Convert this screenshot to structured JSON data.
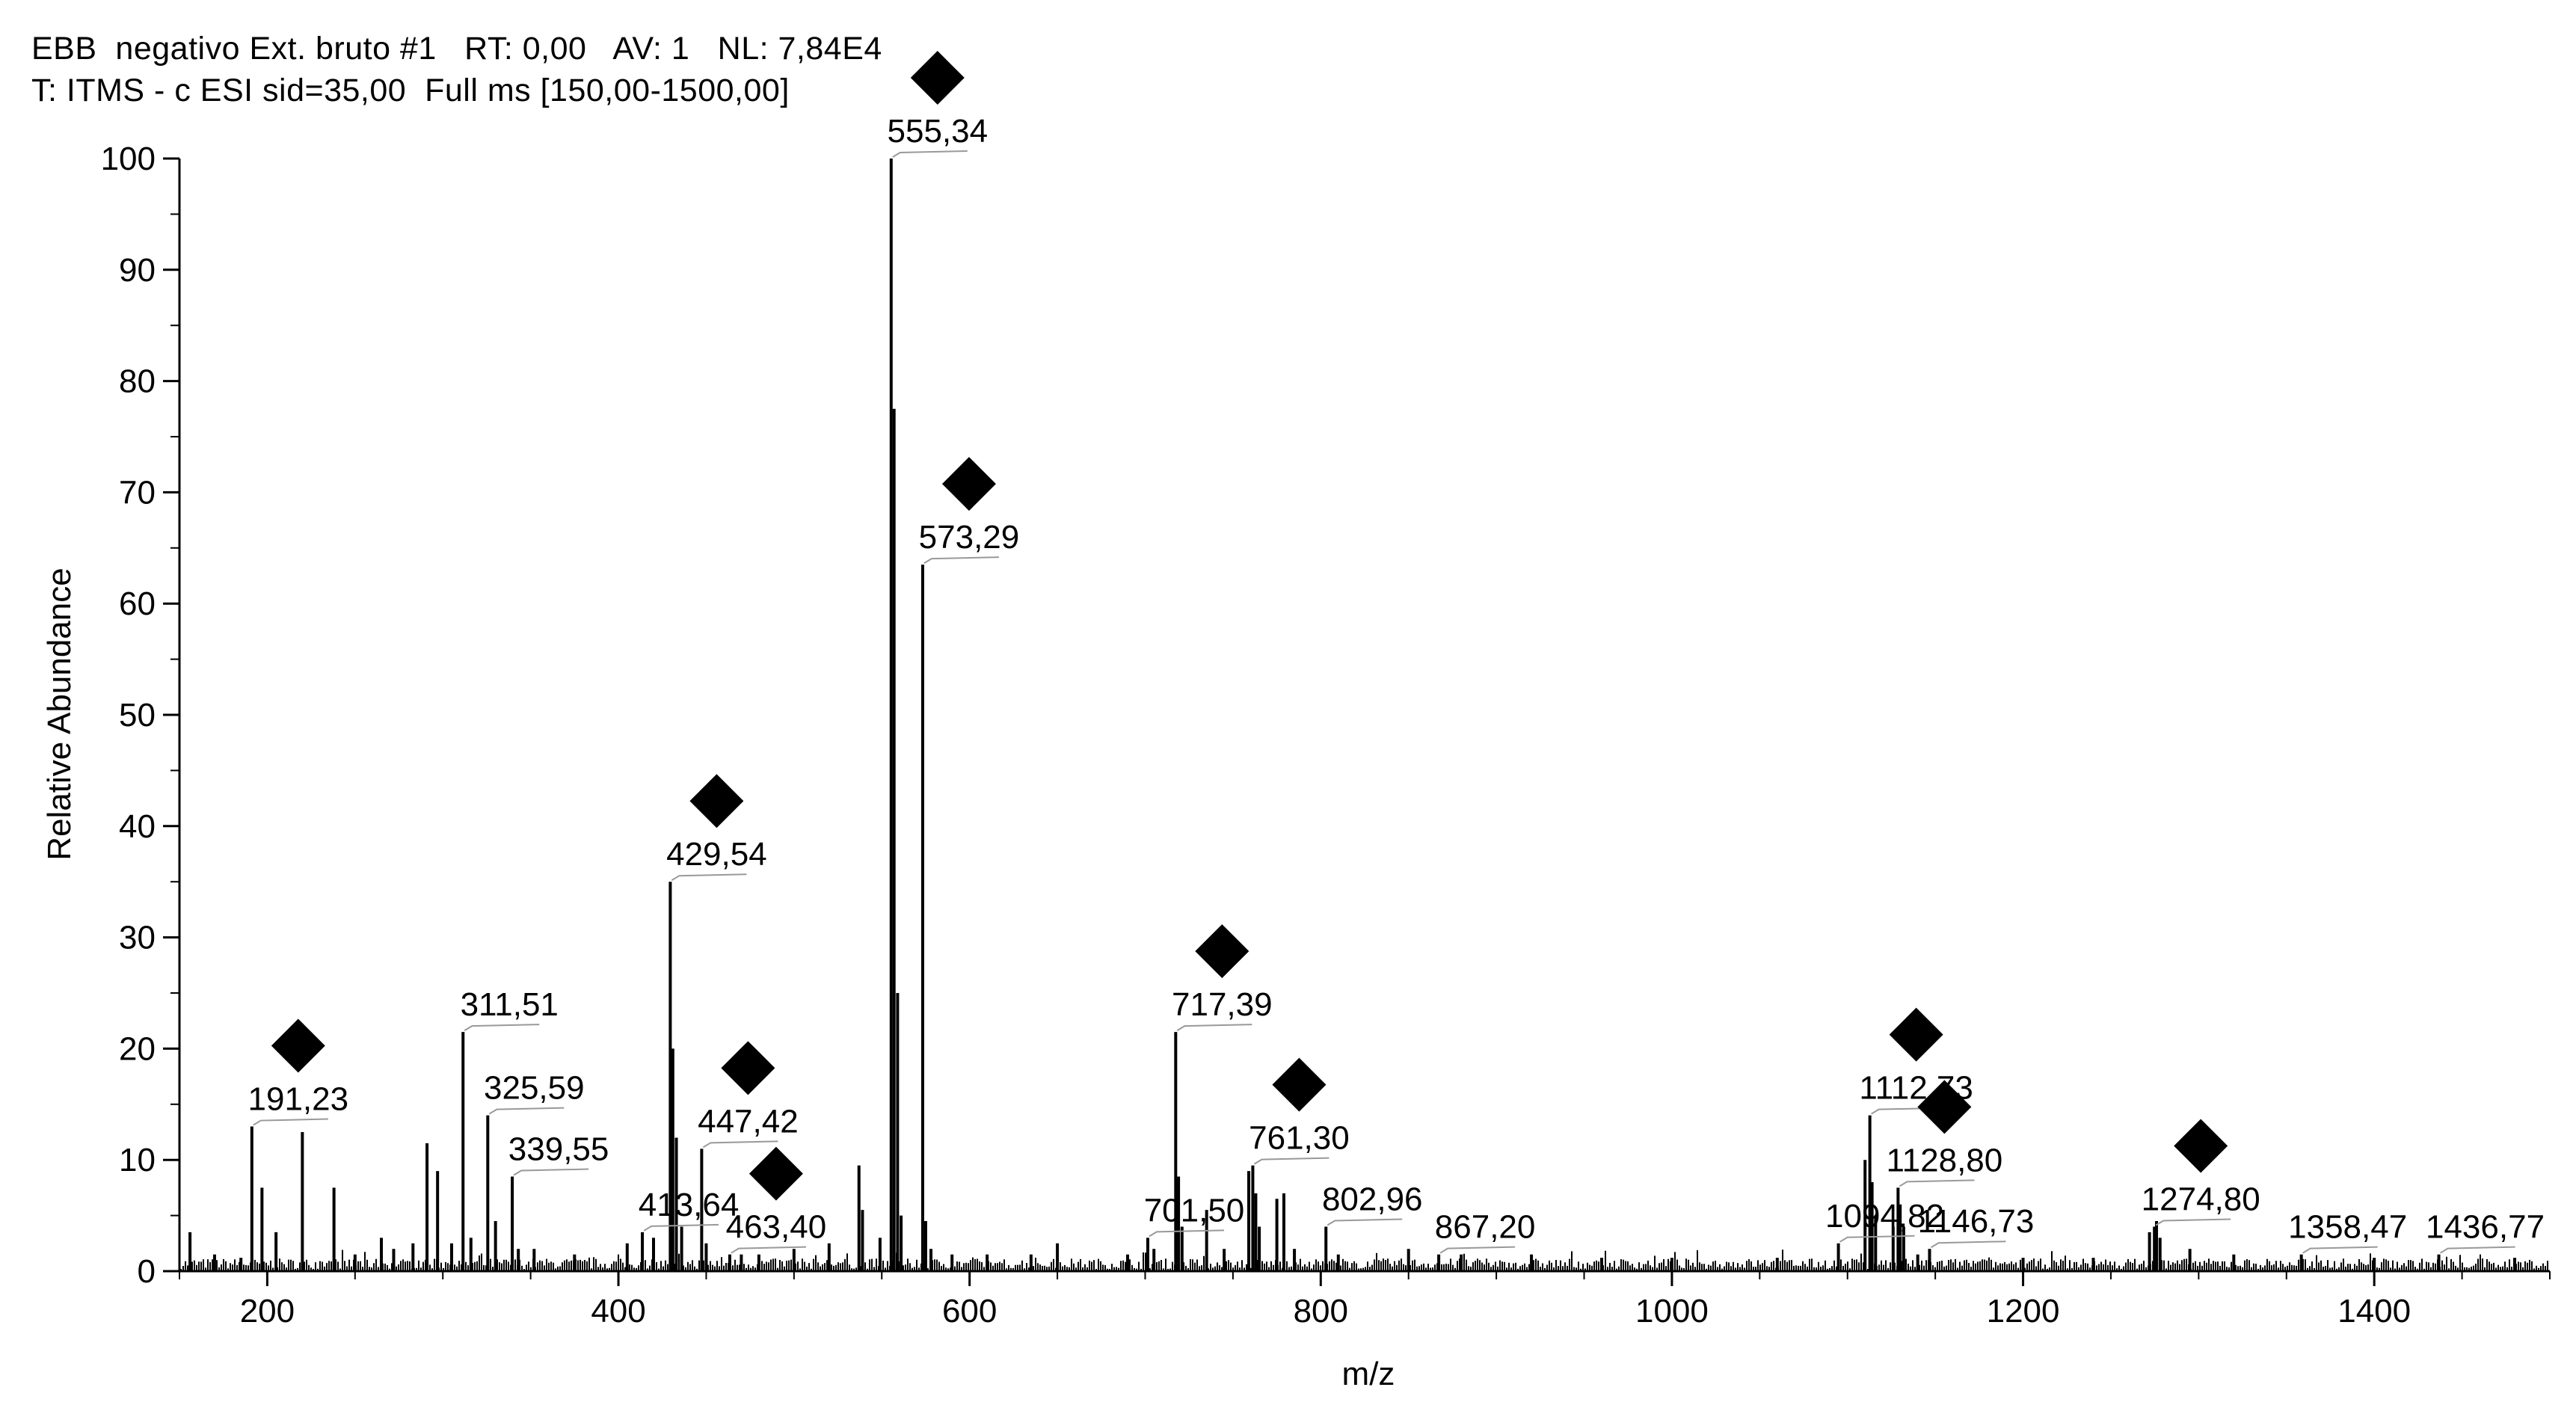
{
  "header": {
    "line1": "EBB  negativo Ext. bruto #1   RT: 0,00   AV: 1   NL: 7,84E4",
    "line2": "T: ITMS - c ESI sid=35,00  Full ms [150,00-1500,00]"
  },
  "chart_data": {
    "type": "bar",
    "xlabel": "m/z",
    "ylabel": "Relative Abundance",
    "xlim": [
      150,
      1500
    ],
    "ylim": [
      0,
      100
    ],
    "xticks": [
      200,
      400,
      600,
      800,
      1000,
      1200,
      1400
    ],
    "yticks": [
      0,
      10,
      20,
      30,
      40,
      50,
      60,
      70,
      80,
      90,
      100
    ],
    "grid": false,
    "peaks": [
      {
        "x": 191.23,
        "y": 13.0,
        "label": "191,23",
        "marker": true
      },
      {
        "x": 311.51,
        "y": 21.5,
        "label": "311,51",
        "marker": false
      },
      {
        "x": 325.59,
        "y": 14.0,
        "label": "325,59",
        "marker": false
      },
      {
        "x": 339.55,
        "y": 8.5,
        "label": "339,55",
        "marker": false
      },
      {
        "x": 413.64,
        "y": 3.5,
        "label": "413,64",
        "marker": false
      },
      {
        "x": 429.54,
        "y": 35.0,
        "label": "429,54",
        "marker": true
      },
      {
        "x": 447.42,
        "y": 11.0,
        "label": "447,42",
        "marker": true
      },
      {
        "x": 463.4,
        "y": 1.5,
        "label": "463,40",
        "marker": true
      },
      {
        "x": 555.34,
        "y": 100.0,
        "label": "555,34",
        "marker": true
      },
      {
        "x": 573.29,
        "y": 63.5,
        "label": "573,29",
        "marker": true
      },
      {
        "x": 701.5,
        "y": 3.0,
        "label": "701,50",
        "marker": false
      },
      {
        "x": 717.39,
        "y": 21.5,
        "label": "717,39",
        "marker": true
      },
      {
        "x": 761.3,
        "y": 9.5,
        "label": "761,30",
        "marker": true
      },
      {
        "x": 802.96,
        "y": 4.0,
        "label": "802,96",
        "marker": false
      },
      {
        "x": 867.2,
        "y": 1.5,
        "label": "867,20",
        "marker": false
      },
      {
        "x": 1094.82,
        "y": 2.5,
        "label": "1094,82",
        "marker": false
      },
      {
        "x": 1112.73,
        "y": 14.0,
        "label": "1112,73",
        "marker": true
      },
      {
        "x": 1128.8,
        "y": 7.5,
        "label": "1128,80",
        "marker": true
      },
      {
        "x": 1146.73,
        "y": 2.0,
        "label": "1146,73",
        "marker": false
      },
      {
        "x": 1274.8,
        "y": 4.0,
        "label": "1274,80",
        "marker": true
      },
      {
        "x": 1358.47,
        "y": 1.5,
        "label": "1358,47",
        "marker": false
      },
      {
        "x": 1436.77,
        "y": 1.5,
        "label": "1436,77",
        "marker": false
      }
    ],
    "minor_peaks": [
      [
        156,
        3.5
      ],
      [
        170,
        1.5
      ],
      [
        185,
        1.2
      ],
      [
        197,
        7.5
      ],
      [
        205,
        3.5
      ],
      [
        220,
        12.5
      ],
      [
        238,
        7.5
      ],
      [
        250,
        1.5
      ],
      [
        265,
        3
      ],
      [
        272,
        2
      ],
      [
        283,
        2.5
      ],
      [
        291,
        11.5
      ],
      [
        297,
        9
      ],
      [
        305,
        2.5
      ],
      [
        316,
        3
      ],
      [
        330,
        4.5
      ],
      [
        343,
        2
      ],
      [
        352,
        2
      ],
      [
        375,
        1.5
      ],
      [
        405,
        2.5
      ],
      [
        420,
        3
      ],
      [
        431,
        20
      ],
      [
        433,
        12
      ],
      [
        436,
        4
      ],
      [
        450,
        2.5
      ],
      [
        470,
        1.5
      ],
      [
        480,
        1.5
      ],
      [
        500,
        2
      ],
      [
        520,
        2.5
      ],
      [
        537,
        9.5
      ],
      [
        539,
        5.5
      ],
      [
        549,
        3
      ],
      [
        557,
        77.5
      ],
      [
        559,
        25
      ],
      [
        561,
        5
      ],
      [
        575,
        4.5
      ],
      [
        578,
        2
      ],
      [
        590,
        1.5
      ],
      [
        610,
        1.5
      ],
      [
        635,
        1.5
      ],
      [
        650,
        2.5
      ],
      [
        690,
        1.5
      ],
      [
        705,
        2
      ],
      [
        719,
        8.5
      ],
      [
        721,
        4
      ],
      [
        735,
        5.5
      ],
      [
        745,
        2
      ],
      [
        759,
        9
      ],
      [
        763,
        7
      ],
      [
        765,
        4
      ],
      [
        775,
        6.5
      ],
      [
        779,
        7
      ],
      [
        785,
        2
      ],
      [
        810,
        1.5
      ],
      [
        850,
        2
      ],
      [
        880,
        1.5
      ],
      [
        920,
        1.5
      ],
      [
        960,
        1.2
      ],
      [
        1000,
        1.2
      ],
      [
        1060,
        1.2
      ],
      [
        1110,
        10
      ],
      [
        1114,
        8
      ],
      [
        1116,
        5
      ],
      [
        1126,
        4
      ],
      [
        1130,
        6
      ],
      [
        1132,
        4
      ],
      [
        1140,
        1.5
      ],
      [
        1200,
        1.2
      ],
      [
        1240,
        1.2
      ],
      [
        1272,
        3.5
      ],
      [
        1276,
        4.5
      ],
      [
        1278,
        3
      ],
      [
        1295,
        2
      ],
      [
        1320,
        1.5
      ],
      [
        1400,
        1.2
      ],
      [
        1480,
        1.2
      ]
    ]
  }
}
